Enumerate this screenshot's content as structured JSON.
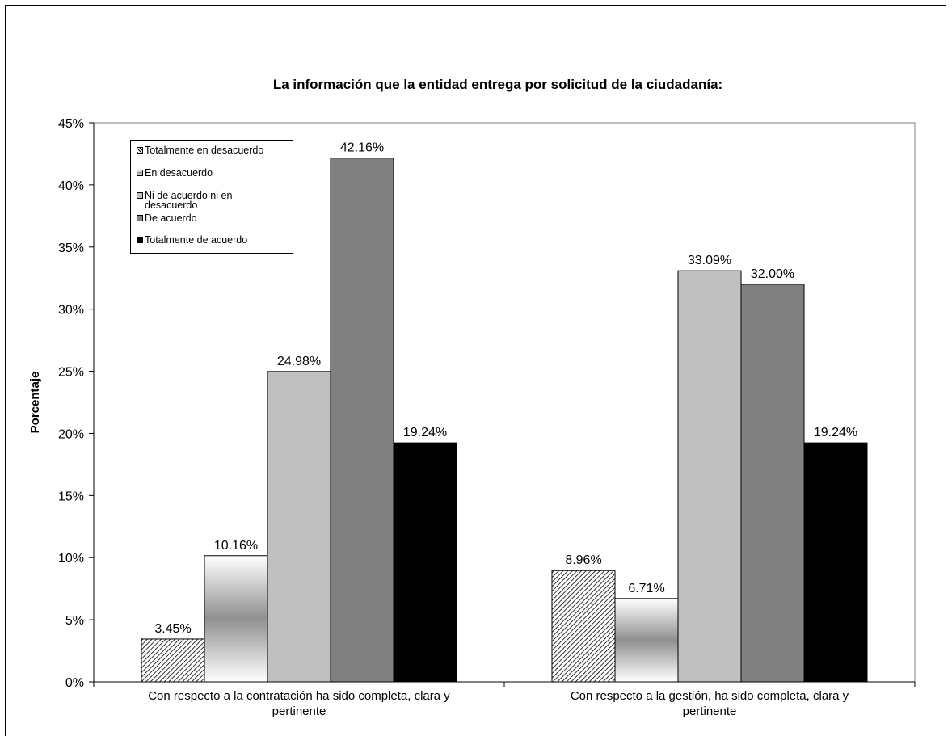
{
  "chart_data": {
    "type": "bar",
    "title": "La información que la entidad entrega por solicitud de la ciudadanía:",
    "ylabel": "Porcentaje",
    "xlabel": "",
    "ylim": [
      0,
      45
    ],
    "yticks": [
      "0%",
      "5%",
      "10%",
      "15%",
      "20%",
      "25%",
      "30%",
      "35%",
      "40%",
      "45%"
    ],
    "grid": false,
    "legend_position": "top-left",
    "categories": [
      [
        "Con respecto a la contratación ha sido completa, clara y",
        "pertinente"
      ],
      [
        "Con respecto a la gestión, ha sido completa, clara y",
        "pertinente"
      ]
    ],
    "series": [
      {
        "name": "Totalmente en desacuerdo",
        "values": [
          3.45,
          8.96
        ],
        "labels": [
          "3.45%",
          "8.96%"
        ],
        "fill": "hatch",
        "color": "#ffffff"
      },
      {
        "name": "En desacuerdo",
        "values": [
          10.16,
          6.71
        ],
        "labels": [
          "10.16%",
          "6.71%"
        ],
        "fill": "gradient",
        "color": "#909090"
      },
      {
        "name": "Ni de acuerdo ni en desacuerdo",
        "legend_lines": [
          "Ni de acuerdo ni en",
          "desacuerdo"
        ],
        "values": [
          24.98,
          33.09
        ],
        "labels": [
          "24.98%",
          "33.09%"
        ],
        "fill": "solid",
        "color": "#c0c0c0"
      },
      {
        "name": "De acuerdo",
        "values": [
          42.16,
          32.0
        ],
        "labels": [
          "42.16%",
          "32.00%"
        ],
        "fill": "solid",
        "color": "#808080"
      },
      {
        "name": "Totalmente de acuerdo",
        "values": [
          19.24,
          19.24
        ],
        "labels": [
          "19.24%",
          "19.24%"
        ],
        "fill": "solid",
        "color": "#000000"
      }
    ]
  }
}
